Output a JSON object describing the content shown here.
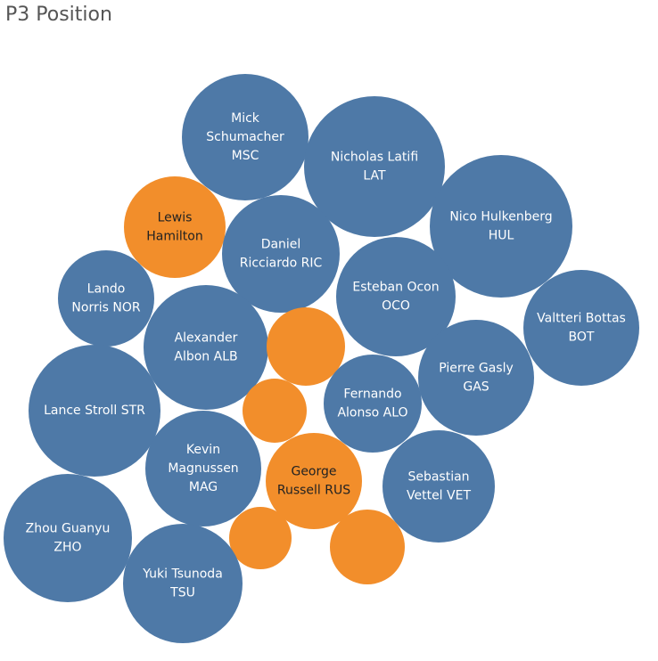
{
  "title": "P3 Position",
  "colors": {
    "blue": "#4e79a7",
    "orange": "#f28e2b",
    "label_on_blue": "#ffffff",
    "label_on_orange": "#222222"
  },
  "chart_data": {
    "type": "bubble",
    "title": "P3 Position",
    "xlabel": "",
    "ylabel": "",
    "grid": false,
    "legend": "none",
    "bubbles": [
      {
        "lines": [
          "Mick",
          "Schumacher",
          "MSC"
        ],
        "color": "blue"
      },
      {
        "lines": [
          "Nicholas Latifi",
          "LAT"
        ],
        "color": "blue"
      },
      {
        "lines": [
          "Lewis",
          "Hamilton"
        ],
        "color": "orange"
      },
      {
        "lines": [
          "Daniel",
          "Ricciardo RIC"
        ],
        "color": "blue"
      },
      {
        "lines": [
          "Nico Hulkenberg",
          "HUL"
        ],
        "color": "blue"
      },
      {
        "lines": [
          "Lando",
          "Norris NOR"
        ],
        "color": "blue"
      },
      {
        "lines": [
          "Esteban Ocon",
          "OCO"
        ],
        "color": "blue"
      },
      {
        "lines": [
          "Valtteri Bottas",
          "BOT"
        ],
        "color": "blue"
      },
      {
        "lines": [
          "Alexander",
          "Albon ALB"
        ],
        "color": "blue"
      },
      {
        "lines": [],
        "color": "orange"
      },
      {
        "lines": [
          "Pierre Gasly",
          "GAS"
        ],
        "color": "blue"
      },
      {
        "lines": [
          "Lance Stroll STR"
        ],
        "color": "blue"
      },
      {
        "lines": [],
        "color": "orange"
      },
      {
        "lines": [
          "Fernando",
          "Alonso ALO"
        ],
        "color": "blue"
      },
      {
        "lines": [
          "Kevin",
          "Magnussen",
          "MAG"
        ],
        "color": "blue"
      },
      {
        "lines": [
          "George",
          "Russell RUS"
        ],
        "color": "orange"
      },
      {
        "lines": [
          "Sebastian",
          "Vettel VET"
        ],
        "color": "blue"
      },
      {
        "lines": [
          "Zhou Guanyu",
          "ZHO"
        ],
        "color": "blue"
      },
      {
        "lines": [],
        "color": "orange"
      },
      {
        "lines": [],
        "color": "orange"
      },
      {
        "lines": [
          "Yuki Tsunoda",
          "TSU"
        ],
        "color": "blue"
      }
    ]
  }
}
